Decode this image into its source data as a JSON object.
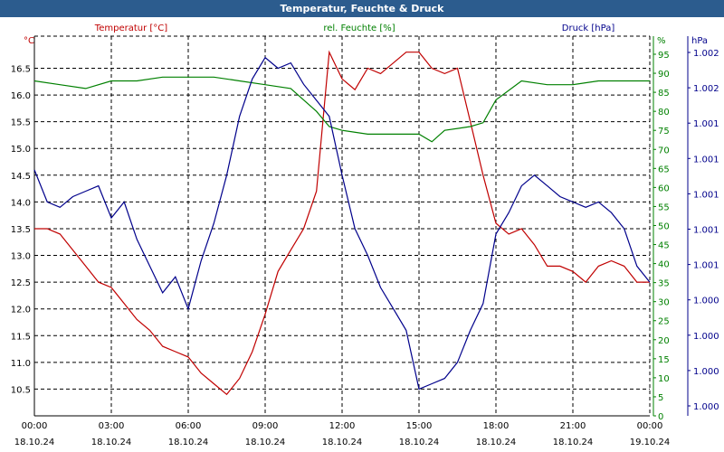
{
  "window": {
    "title": "Temperatur, Feuchte & Druck"
  },
  "chart_data": {
    "type": "line",
    "title": "Temperatur, Feuchte & Druck",
    "grid": true,
    "x": {
      "label": "",
      "range": [
        "18.10.24 00:00",
        "19.10.24 00:00"
      ],
      "ticks": [
        {
          "time": "00:00",
          "date": "18.10.24"
        },
        {
          "time": "03:00",
          "date": "18.10.24"
        },
        {
          "time": "06:00",
          "date": "18.10.24"
        },
        {
          "time": "09:00",
          "date": "18.10.24"
        },
        {
          "time": "12:00",
          "date": "18.10.24"
        },
        {
          "time": "15:00",
          "date": "18.10.24"
        },
        {
          "time": "18:00",
          "date": "18.10.24"
        },
        {
          "time": "21:00",
          "date": "18.10.24"
        },
        {
          "time": "00:00",
          "date": "19.10.24"
        }
      ]
    },
    "axes": {
      "temperature": {
        "unit": "°C",
        "range": [
          10.0,
          17.1
        ],
        "side": "left",
        "color": "#c00000",
        "ticks": [
          "16.5",
          "16.0",
          "15.5",
          "15.0",
          "14.5",
          "14.0",
          "13.5",
          "13.0",
          "12.5",
          "12.0",
          "11.5",
          "11.0",
          "10.5"
        ]
      },
      "humidity": {
        "unit": "%",
        "range": [
          0,
          95
        ],
        "side": "right",
        "color": "#008000",
        "ticks": [
          "95",
          "90",
          "85",
          "80",
          "75",
          "70",
          "65",
          "60",
          "55",
          "50",
          "45",
          "40",
          "35",
          "30",
          "25",
          "20",
          "15",
          "10",
          "5",
          "0"
        ]
      },
      "pressure": {
        "unit": "hPa",
        "side": "right",
        "color": "#00008b",
        "ticks": [
          "1.002",
          "1.002",
          "1.001",
          "1.001",
          "1.001",
          "1.001",
          "1.001",
          "1.000",
          "1.000",
          "1.000",
          "1.000"
        ]
      }
    },
    "series": [
      {
        "name": "Temperatur [°C]",
        "axis": "temperature",
        "color": "#c00000",
        "hours": [
          0,
          0.5,
          1,
          1.5,
          2,
          2.5,
          3,
          3.5,
          4,
          4.5,
          5,
          5.5,
          6,
          6.5,
          7,
          7.5,
          8,
          8.5,
          9,
          9.5,
          10,
          10.5,
          11,
          11.5,
          12,
          12.5,
          13,
          13.5,
          14,
          14.5,
          15,
          15.5,
          16,
          16.5,
          17,
          17.5,
          18,
          18.5,
          19,
          19.5,
          20,
          20.5,
          21,
          21.5,
          22,
          22.5,
          23,
          23.5,
          24
        ],
        "values": [
          13.5,
          13.5,
          13.4,
          13.1,
          12.8,
          12.5,
          12.4,
          12.1,
          11.8,
          11.6,
          11.3,
          11.2,
          11.1,
          10.8,
          10.6,
          10.4,
          10.7,
          11.2,
          11.9,
          12.7,
          13.1,
          13.5,
          14.2,
          16.8,
          16.3,
          16.1,
          16.5,
          16.4,
          16.6,
          16.8,
          16.8,
          16.5,
          16.4,
          16.5,
          15.5,
          14.5,
          13.6,
          13.4,
          13.5,
          13.2,
          12.8,
          12.8,
          12.7,
          12.5,
          12.8,
          12.9,
          12.8,
          12.5,
          12.5
        ]
      },
      {
        "name": "rel. Feuchte [%]",
        "axis": "humidity",
        "color": "#008000",
        "hours": [
          0,
          1,
          2,
          3,
          4,
          5,
          6,
          7,
          8,
          9,
          10,
          11,
          11.5,
          12,
          13,
          14,
          15,
          15.5,
          16,
          17,
          17.5,
          18,
          19,
          20,
          21,
          22,
          23,
          24
        ],
        "values": [
          88,
          87,
          86,
          88,
          88,
          89,
          89,
          89,
          88,
          87,
          86,
          80,
          76,
          75,
          74,
          74,
          74,
          72,
          75,
          76,
          77,
          83,
          88,
          87,
          87,
          88,
          88,
          88
        ]
      },
      {
        "name": "Druck [hPa]",
        "axis": "pressure",
        "color": "#00008b",
        "hours": [
          0,
          0.5,
          1,
          1.5,
          2,
          2.5,
          3,
          3.5,
          4,
          4.5,
          5,
          5.5,
          6,
          6.5,
          7,
          7.5,
          8,
          8.5,
          9,
          9.5,
          10,
          10.5,
          11,
          11.5,
          12,
          12.5,
          13,
          13.5,
          14,
          14.5,
          15,
          15.5,
          16,
          16.5,
          17,
          17.5,
          18,
          18.5,
          19,
          19.5,
          20,
          20.5,
          21,
          21.5,
          22,
          22.5,
          23,
          23.5,
          24
        ],
        "values": [
          14.6,
          14.0,
          13.9,
          14.1,
          14.2,
          14.3,
          13.7,
          14.0,
          13.3,
          12.8,
          12.3,
          12.6,
          12.0,
          12.9,
          13.6,
          14.5,
          15.6,
          16.3,
          16.7,
          16.5,
          16.6,
          16.2,
          15.9,
          15.6,
          14.5,
          13.5,
          13.0,
          12.4,
          12.0,
          11.6,
          10.5,
          10.6,
          10.7,
          11.0,
          11.6,
          12.1,
          13.4,
          13.8,
          14.3,
          14.5,
          14.3,
          14.1,
          14.0,
          13.9,
          14.0,
          13.8,
          13.5,
          12.8,
          12.5
        ]
      }
    ],
    "legend": {
      "temperature": "Temperatur [°C]",
      "humidity": "rel. Feuchte [%]",
      "pressure": "Druck [hPa]"
    }
  }
}
